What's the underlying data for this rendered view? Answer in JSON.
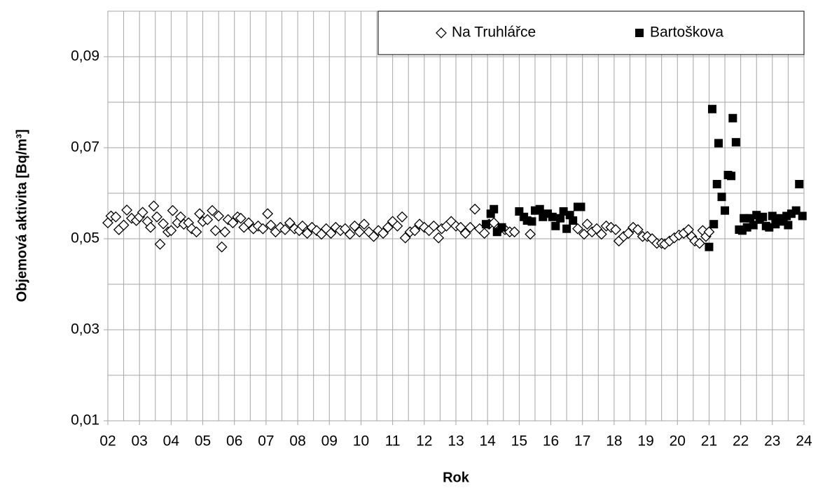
{
  "chart_data": {
    "type": "scatter",
    "x_label": "Rok",
    "y_label": "Objemová aktivita [Bq/m³]",
    "xlim": [
      2,
      24
    ],
    "ylim": [
      0.01,
      0.1
    ],
    "xticks": [
      {
        "value": 2,
        "label": "02"
      },
      {
        "value": 3,
        "label": "03"
      },
      {
        "value": 4,
        "label": "04"
      },
      {
        "value": 5,
        "label": "05"
      },
      {
        "value": 6,
        "label": "06"
      },
      {
        "value": 7,
        "label": "07"
      },
      {
        "value": 8,
        "label": "08"
      },
      {
        "value": 9,
        "label": "09"
      },
      {
        "value": 10,
        "label": "10"
      },
      {
        "value": 11,
        "label": "11"
      },
      {
        "value": 12,
        "label": "12"
      },
      {
        "value": 13,
        "label": "13"
      },
      {
        "value": 14,
        "label": "14"
      },
      {
        "value": 15,
        "label": "15"
      },
      {
        "value": 16,
        "label": "16"
      },
      {
        "value": 17,
        "label": "17"
      },
      {
        "value": 18,
        "label": "18"
      },
      {
        "value": 19,
        "label": "19"
      },
      {
        "value": 20,
        "label": "20"
      },
      {
        "value": 21,
        "label": "21"
      },
      {
        "value": 22,
        "label": "22"
      },
      {
        "value": 23,
        "label": "23"
      },
      {
        "value": 24,
        "label": "24"
      }
    ],
    "yticks": [
      {
        "value": 0.01,
        "label": "0,01"
      },
      {
        "value": 0.03,
        "label": "0,03"
      },
      {
        "value": 0.05,
        "label": "0,05"
      },
      {
        "value": 0.07,
        "label": "0,07"
      },
      {
        "value": 0.09,
        "label": "0,09"
      }
    ],
    "x_grid_step": 0.5,
    "y_grid_step": 0.01,
    "grid": true,
    "legend": "top-right",
    "series": [
      {
        "name": "Na Truhlářce",
        "color": "#000000",
        "marker": "diamond",
        "x": [
          2.0,
          2.1,
          2.25,
          2.35,
          2.5,
          2.6,
          2.75,
          2.9,
          3.0,
          3.1,
          3.25,
          3.35,
          3.45,
          3.55,
          3.65,
          3.75,
          3.9,
          4.0,
          4.05,
          4.2,
          4.3,
          4.4,
          4.55,
          4.65,
          4.8,
          4.9,
          5.0,
          5.15,
          5.3,
          5.4,
          5.5,
          5.6,
          5.7,
          5.8,
          5.95,
          6.1,
          6.2,
          6.3,
          6.45,
          6.6,
          6.75,
          6.9,
          7.05,
          7.15,
          7.3,
          7.45,
          7.6,
          7.75,
          7.9,
          8.05,
          8.15,
          8.3,
          8.45,
          8.6,
          8.75,
          8.9,
          9.05,
          9.2,
          9.35,
          9.5,
          9.65,
          9.8,
          9.95,
          10.1,
          10.25,
          10.4,
          10.55,
          10.7,
          10.85,
          11.0,
          11.15,
          11.3,
          11.4,
          11.55,
          11.7,
          11.85,
          12.0,
          12.15,
          12.3,
          12.45,
          12.55,
          12.7,
          12.85,
          13.0,
          13.15,
          13.3,
          13.45,
          13.6,
          13.75,
          13.9,
          14.05,
          14.2,
          14.4,
          14.55,
          14.7,
          14.85,
          15.35,
          16.85,
          17.05,
          17.15,
          17.3,
          17.45,
          17.6,
          17.75,
          17.9,
          18.05,
          18.15,
          18.3,
          18.45,
          18.6,
          18.75,
          18.9,
          19.05,
          19.2,
          19.35,
          19.5,
          19.6,
          19.75,
          19.9,
          20.05,
          20.2,
          20.35,
          20.45,
          20.55,
          20.7,
          20.8,
          20.9,
          21.0
        ],
        "values": [
          0.0535,
          0.055,
          0.0548,
          0.052,
          0.053,
          0.0563,
          0.0545,
          0.054,
          0.0548,
          0.0558,
          0.0538,
          0.0525,
          0.0572,
          0.0548,
          0.0488,
          0.0533,
          0.0515,
          0.0518,
          0.0562,
          0.0535,
          0.0548,
          0.0532,
          0.0535,
          0.0522,
          0.0515,
          0.0555,
          0.0538,
          0.0542,
          0.0562,
          0.0518,
          0.055,
          0.0482,
          0.0515,
          0.0542,
          0.0535,
          0.0548,
          0.0545,
          0.0525,
          0.0535,
          0.0522,
          0.0528,
          0.0522,
          0.0555,
          0.053,
          0.0515,
          0.0525,
          0.052,
          0.0535,
          0.0522,
          0.0518,
          0.0528,
          0.0512,
          0.0525,
          0.0518,
          0.051,
          0.0522,
          0.0512,
          0.0525,
          0.0518,
          0.0522,
          0.051,
          0.0528,
          0.0515,
          0.0532,
          0.0515,
          0.0505,
          0.0518,
          0.0512,
          0.0525,
          0.0538,
          0.0528,
          0.0548,
          0.0502,
          0.0515,
          0.0518,
          0.0532,
          0.0525,
          0.0518,
          0.0528,
          0.0502,
          0.0522,
          0.0528,
          0.0538,
          0.0528,
          0.0525,
          0.0512,
          0.0525,
          0.0565,
          0.0522,
          0.0512,
          0.0532,
          0.0535,
          0.0522,
          0.052,
          0.0515,
          0.0515,
          0.051,
          0.0522,
          0.051,
          0.0532,
          0.0515,
          0.0522,
          0.051,
          0.0528,
          0.0525,
          0.052,
          0.0495,
          0.0505,
          0.0512,
          0.0525,
          0.052,
          0.0505,
          0.0505,
          0.05,
          0.049,
          0.049,
          0.0488,
          0.0495,
          0.0502,
          0.0508,
          0.0512,
          0.052,
          0.0505,
          0.0495,
          0.049,
          0.0518,
          0.0505,
          0.0515
        ]
      },
      {
        "name": "Bartoškova",
        "color": "#000000",
        "marker": "square",
        "x": [
          13.95,
          14.1,
          14.2,
          14.3,
          14.45,
          15.0,
          15.15,
          15.25,
          15.4,
          15.5,
          15.65,
          15.75,
          15.9,
          16.05,
          16.15,
          16.3,
          16.4,
          16.5,
          16.6,
          16.7,
          16.85,
          16.95,
          21.0,
          21.1,
          21.15,
          21.25,
          21.3,
          21.4,
          21.5,
          21.6,
          21.7,
          21.75,
          21.85,
          21.95,
          22.05,
          22.1,
          22.2,
          22.3,
          22.4,
          22.5,
          22.6,
          22.7,
          22.8,
          22.9,
          23.0,
          23.1,
          23.2,
          23.35,
          23.45,
          23.5,
          23.6,
          23.75,
          23.85,
          23.95
        ],
        "values": [
          0.0532,
          0.0555,
          0.0565,
          0.0515,
          0.0525,
          0.056,
          0.0548,
          0.054,
          0.0538,
          0.0562,
          0.0565,
          0.0548,
          0.0555,
          0.0548,
          0.0528,
          0.0545,
          0.056,
          0.0522,
          0.0552,
          0.054,
          0.057,
          0.057,
          0.0482,
          0.0785,
          0.0532,
          0.062,
          0.071,
          0.0592,
          0.0562,
          0.064,
          0.0638,
          0.0765,
          0.0712,
          0.052,
          0.0518,
          0.0545,
          0.0525,
          0.0545,
          0.053,
          0.0552,
          0.0542,
          0.0548,
          0.0528,
          0.0525,
          0.055,
          0.0532,
          0.0545,
          0.0538,
          0.055,
          0.053,
          0.0555,
          0.0562,
          0.062,
          0.055
        ]
      }
    ]
  }
}
